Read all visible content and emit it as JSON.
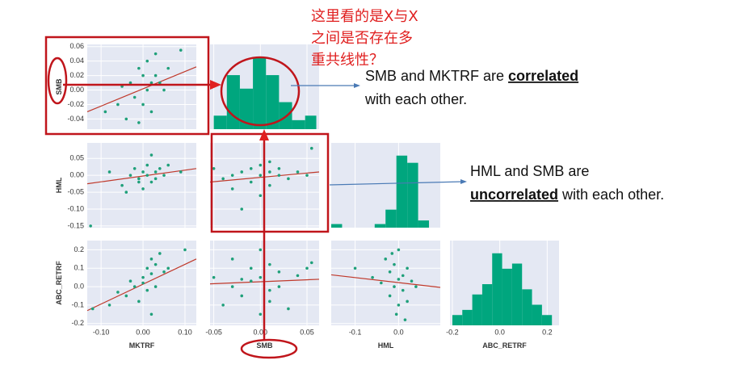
{
  "annotation": {
    "lines": [
      "这里看的是X与X",
      "之间是否存在多",
      "重共线性？"
    ]
  },
  "callouts": [
    {
      "before": "SMB and MKTRF are ",
      "emph": "correlated",
      "after": "with each other."
    },
    {
      "before": "HML and SMB are",
      "emph": "uncorrelated",
      "after": " with each other."
    }
  ],
  "chart_data": {
    "type": "pairplot",
    "point_color": "#1fa07a",
    "hist_color": "#00a67e",
    "fit_color": "#c0392b",
    "background": "#e4e8f3",
    "grid": true,
    "variables": [
      {
        "name": "MKTRF",
        "lim": [
          -0.133,
          0.127
        ],
        "xticks": [
          {
            "value": -0.1,
            "label": "-0.10"
          },
          {
            "value": 0,
            "label": "0.00"
          },
          {
            "value": 0.1,
            "label": "0.10"
          }
        ]
      },
      {
        "name": "SMB",
        "lim": [
          -0.054,
          0.063
        ],
        "xticks": [
          -0.05,
          {
            "value": 0,
            "label": "0.00"
          },
          0.05
        ],
        "yticks": [
          0.06,
          0.04,
          0.02,
          {
            "value": 0,
            "label": "0.00"
          },
          -0.02,
          -0.04
        ]
      },
      {
        "name": "HML",
        "lim": [
          -0.155,
          0.096
        ],
        "xticks": [
          -0.1,
          {
            "value": 0,
            "label": "0.0"
          }
        ],
        "yticks": [
          0.05,
          {
            "value": 0,
            "label": "0.00"
          },
          -0.05,
          {
            "value": -0.1,
            "label": "-0.10"
          },
          -0.15
        ]
      },
      {
        "name": "ABC_RETRF",
        "lim": [
          -0.21,
          0.25
        ],
        "xticks": [
          -0.2,
          {
            "value": 0,
            "label": "0.0"
          },
          0.2
        ],
        "yticks": [
          0.2,
          0.1,
          {
            "value": 0,
            "label": "0.0"
          },
          -0.1,
          -0.2
        ]
      }
    ],
    "rows": [
      [
        {
          "type": "scatter",
          "x": [
            -0.09,
            -0.06,
            -0.04,
            -0.03,
            -0.02,
            -0.01,
            0.0,
            0.0,
            0.01,
            0.01,
            0.02,
            0.02,
            0.03,
            0.03,
            0.04,
            0.05,
            -0.05,
            0.06,
            0.09,
            -0.01
          ],
          "y": [
            -0.03,
            -0.02,
            -0.04,
            0.01,
            -0.01,
            0.03,
            0.02,
            -0.02,
            0.04,
            0.0,
            0.01,
            -0.03,
            0.02,
            0.05,
            0.01,
            0.0,
            0.005,
            0.03,
            0.055,
            -0.045
          ],
          "fit_y": [
            -0.03,
            0.032
          ]
        },
        {
          "type": "histogram",
          "bins": [
            -0.05,
            -0.036,
            -0.022,
            -0.008,
            0.006,
            0.02,
            0.034,
            0.048,
            0.06
          ],
          "counts": [
            3,
            12,
            9,
            16,
            12,
            6,
            2,
            3
          ]
        }
      ],
      [
        {
          "type": "scatter",
          "x": [
            -0.125,
            -0.08,
            -0.05,
            -0.03,
            -0.02,
            -0.01,
            0.0,
            0.0,
            0.01,
            0.01,
            0.02,
            0.02,
            0.03,
            0.03,
            0.04,
            0.05,
            -0.04,
            0.06,
            0.09,
            -0.01
          ],
          "y": [
            -0.15,
            0.01,
            -0.03,
            0.0,
            0.02,
            -0.01,
            0.01,
            -0.04,
            0.03,
            0.0,
            -0.02,
            0.06,
            0.01,
            -0.01,
            0.02,
            0.0,
            -0.05,
            0.03,
            0.01,
            -0.02
          ],
          "fit_y": [
            -0.025,
            0.02
          ]
        },
        {
          "type": "scatter",
          "x": [
            -0.05,
            -0.04,
            -0.03,
            -0.03,
            -0.02,
            -0.01,
            -0.01,
            0.0,
            0.0,
            0.0,
            0.01,
            0.01,
            0.02,
            0.02,
            0.03,
            0.04,
            0.05,
            -0.02,
            0.01,
            0.055
          ],
          "y": [
            0.02,
            -0.01,
            0.0,
            -0.04,
            0.01,
            0.02,
            -0.02,
            0.0,
            0.03,
            -0.06,
            0.01,
            -0.03,
            0.0,
            0.02,
            -0.01,
            0.01,
            0.0,
            -0.1,
            0.04,
            0.08
          ],
          "fit_y": [
            -0.02,
            0.01
          ]
        },
        {
          "type": "histogram",
          "bins": [
            -0.155,
            -0.13,
            -0.105,
            -0.08,
            -0.055,
            -0.03,
            -0.005,
            0.02,
            0.045,
            0.07
          ],
          "counts": [
            1,
            0,
            0,
            0,
            1,
            5,
            20,
            18,
            2
          ]
        }
      ],
      [
        {
          "type": "scatter",
          "x": [
            -0.12,
            -0.08,
            -0.06,
            -0.04,
            -0.02,
            -0.01,
            0.0,
            0.0,
            0.01,
            0.01,
            0.02,
            0.02,
            0.03,
            0.03,
            0.04,
            0.05,
            0.06,
            -0.03,
            0.02,
            0.1
          ],
          "y": [
            -0.12,
            -0.1,
            -0.03,
            -0.05,
            0.0,
            -0.08,
            0.05,
            0.02,
            0.1,
            -0.02,
            0.07,
            0.15,
            0.0,
            0.12,
            0.18,
            0.08,
            0.1,
            0.03,
            -0.15,
            0.2
          ],
          "fit_y": [
            -0.13,
            0.15
          ]
        },
        {
          "type": "scatter",
          "x": [
            -0.05,
            -0.04,
            -0.03,
            -0.03,
            -0.02,
            -0.01,
            -0.01,
            0.0,
            0.0,
            0.0,
            0.01,
            0.01,
            0.02,
            0.02,
            0.03,
            0.04,
            0.05,
            -0.02,
            0.01,
            0.055
          ],
          "y": [
            0.05,
            -0.1,
            0.15,
            0.0,
            -0.05,
            0.1,
            0.03,
            -0.15,
            0.2,
            0.05,
            -0.08,
            0.12,
            0.0,
            0.08,
            -0.12,
            0.06,
            0.1,
            0.04,
            -0.02,
            0.13
          ],
          "fit_y": [
            0.015,
            0.04
          ]
        },
        {
          "type": "scatter",
          "x": [
            -0.1,
            -0.06,
            -0.04,
            -0.03,
            -0.02,
            -0.02,
            -0.01,
            -0.01,
            0.0,
            0.0,
            0.0,
            0.01,
            0.01,
            0.02,
            0.02,
            0.03,
            -0.005,
            0.015,
            -0.015,
            0.04
          ],
          "y": [
            0.1,
            0.05,
            0.02,
            0.15,
            -0.05,
            0.08,
            0.0,
            0.12,
            -0.1,
            0.04,
            0.2,
            -0.02,
            0.06,
            0.1,
            -0.08,
            0.03,
            -0.15,
            -0.18,
            0.18,
            0.0
          ],
          "fit_y": [
            0.064,
            -0.004
          ]
        },
        {
          "type": "histogram",
          "bins": [
            -0.2,
            -0.158,
            -0.116,
            -0.074,
            -0.032,
            0.01,
            0.052,
            0.094,
            0.136,
            0.178,
            0.22
          ],
          "counts": [
            2,
            3,
            6,
            8,
            14,
            11,
            12,
            7,
            4,
            2
          ]
        }
      ]
    ]
  }
}
